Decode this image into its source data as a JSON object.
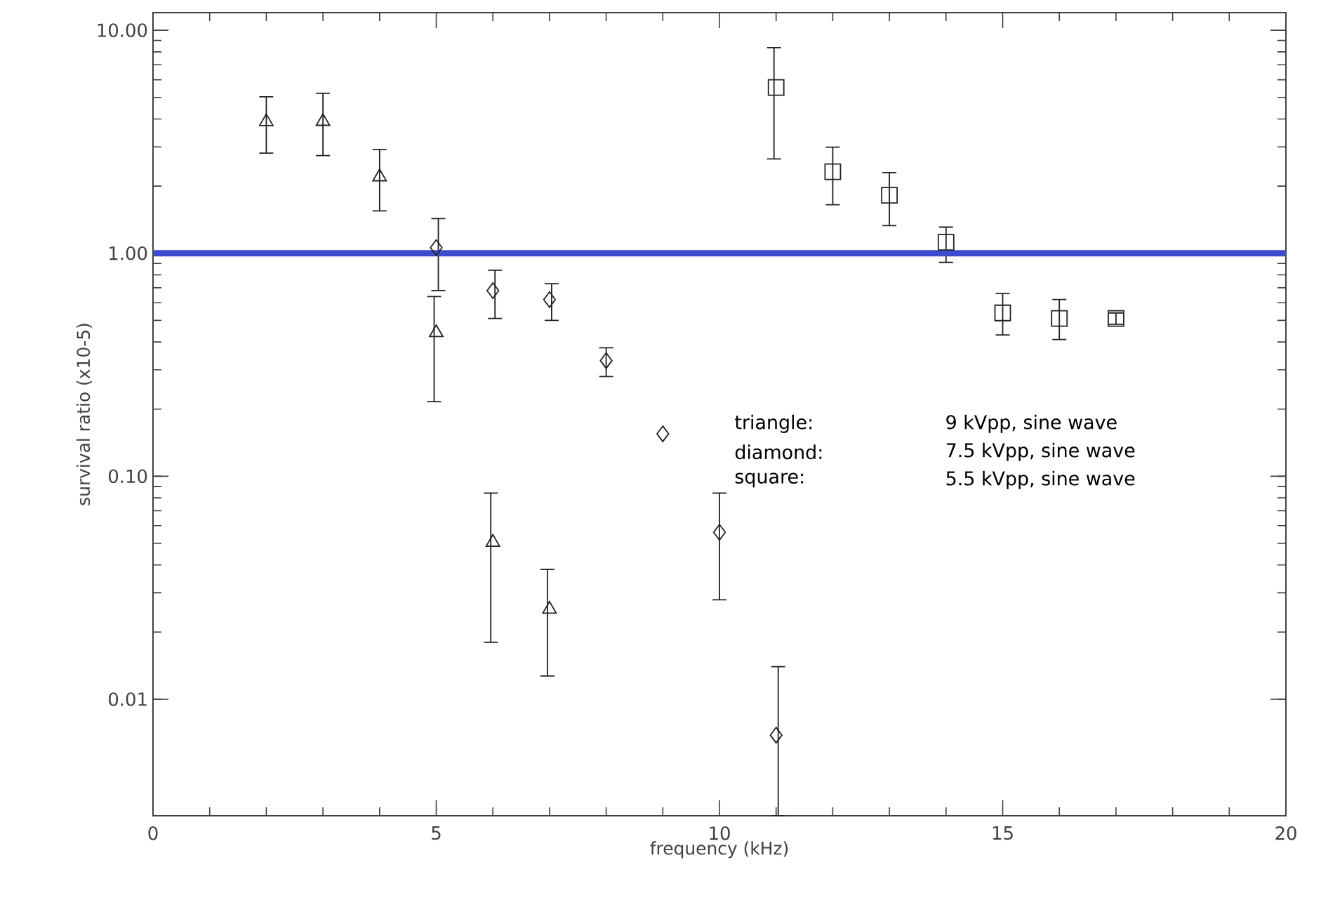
{
  "chart_data": {
    "type": "scatter",
    "xlabel": "frequency (kHz)",
    "ylabel": "survival ratio (x10-5)",
    "xlim": [
      0,
      20
    ],
    "xticks": [
      0,
      5,
      10,
      15,
      20
    ],
    "ylim": [
      0.003,
      12
    ],
    "yticks": [
      {
        "value": 0.01,
        "label": "0.01"
      },
      {
        "value": 0.1,
        "label": "0.10"
      },
      {
        "value": 1,
        "label": "1.00"
      },
      {
        "value": 10,
        "label": "10.00"
      }
    ],
    "log": "y",
    "grid": false,
    "series": [
      {
        "color": "#222222",
        "marker": "triangle",
        "x": [
          2,
          3,
          4,
          5,
          6,
          7
        ],
        "values": [
          3.89,
          3.9,
          2.2,
          0.44,
          0.0505,
          0.0253
        ],
        "errors": [
          [
            2.81,
            5.03
          ],
          [
            2.74,
            5.22
          ],
          [
            1.55,
            2.92
          ],
          [
            0.216,
            0.64
          ],
          [
            0.018,
            0.084
          ],
          [
            0.0127,
            0.0382
          ]
        ]
      },
      {
        "color": "#222222",
        "marker": "diamond",
        "x": [
          5,
          6,
          7,
          8,
          9,
          10,
          11
        ],
        "values": [
          1.06,
          0.68,
          0.62,
          0.33,
          0.155,
          0.056,
          0.0069
        ],
        "errors": [
          [
            0.68,
            1.43
          ],
          [
            0.51,
            0.84
          ],
          [
            0.5,
            0.73
          ],
          [
            0.28,
            0.377
          ],
          null,
          [
            0.0279,
            0.084
          ],
          [
            0.003,
            0.014
          ]
        ]
      },
      {
        "color": "#222222",
        "marker": "square",
        "x": [
          11,
          12,
          13,
          14,
          15,
          16,
          17
        ],
        "values": [
          5.54,
          2.32,
          1.82,
          1.12,
          0.54,
          0.51,
          0.51
        ],
        "errors": [
          [
            2.65,
            8.36
          ],
          [
            1.65,
            2.99
          ],
          [
            1.33,
            2.3
          ],
          [
            0.91,
            1.31
          ],
          [
            0.43,
            0.66
          ],
          [
            0.41,
            0.62
          ],
          [
            0.48,
            0.54
          ]
        ]
      }
    ],
    "ref_lines": [
      {
        "axis": "y",
        "value": 1,
        "color": "#3d4ccc"
      }
    ],
    "annotations": [
      "triangle:",
      "9 kVpp, sine wave",
      "diamond:",
      "7.5 kVpp, sine wave",
      "square:",
      "5.5 kVpp, sine wave"
    ]
  }
}
